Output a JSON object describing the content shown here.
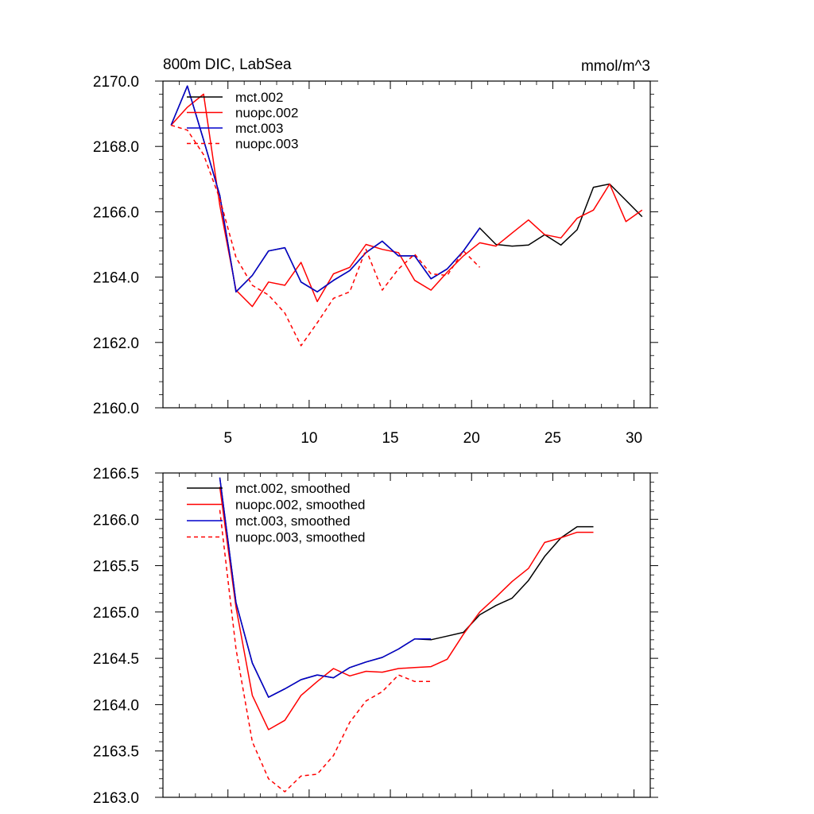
{
  "colors": {
    "black": "#000000",
    "red": "#ff0000",
    "blue": "#0000cc"
  },
  "chart_data": [
    {
      "type": "line",
      "title": "800m DIC, LabSea",
      "units": "mmol/m^3",
      "xlabel": "",
      "ylabel": "",
      "xlim": [
        1,
        31
      ],
      "ylim": [
        2160.0,
        2170.0
      ],
      "xticks": [
        5,
        10,
        15,
        20,
        25,
        30
      ],
      "xtick_labels": [
        "5",
        "10",
        "15",
        "20",
        "25",
        "30"
      ],
      "yticks": [
        2160,
        2162,
        2164,
        2166,
        2168,
        2170
      ],
      "ytick_labels": [
        "2160.0",
        "2162.0",
        "2164.0",
        "2166.0",
        "2168.0",
        "2170.0"
      ],
      "legend_position": "top-left",
      "series": [
        {
          "name": "mct.002",
          "color": "#000000",
          "dash": "solid",
          "x": [
            1.5,
            2.5,
            3.5,
            4.5,
            5.5,
            6.5,
            7.5,
            8.5,
            9.5,
            10.5,
            11.5,
            12.5,
            13.5,
            14.5,
            15.5,
            16.5,
            17.5,
            18.5,
            19.5,
            20.5,
            21.5,
            22.5,
            23.5,
            24.5,
            25.5,
            26.5,
            27.5,
            28.5,
            29.5,
            30.5
          ],
          "values": [
            2168.65,
            2169.85,
            2168.2,
            2166.5,
            2163.55,
            2164.05,
            2164.8,
            2164.9,
            2163.85,
            2163.55,
            2163.9,
            2164.2,
            2164.75,
            2165.1,
            2164.65,
            2164.65,
            2163.95,
            2164.25,
            2164.8,
            2165.5,
            2165.0,
            2164.95,
            2164.98,
            2165.3,
            2164.98,
            2165.45,
            2166.75,
            2166.85,
            2166.35,
            2165.85
          ]
        },
        {
          "name": "nuopc.002",
          "color": "#ff0000",
          "dash": "solid",
          "x": [
            1.5,
            2.5,
            3.5,
            4.5,
            5.5,
            6.5,
            7.5,
            8.5,
            9.5,
            10.5,
            11.5,
            12.5,
            13.5,
            14.5,
            15.5,
            16.5,
            17.5,
            18.5,
            19.5,
            20.5,
            21.5,
            22.5,
            23.5,
            24.5,
            25.5,
            26.5,
            27.5,
            28.5,
            29.5,
            30.5
          ],
          "values": [
            2168.65,
            2169.2,
            2169.6,
            2166.2,
            2163.6,
            2163.1,
            2163.85,
            2163.75,
            2164.45,
            2163.25,
            2164.1,
            2164.3,
            2165.0,
            2164.85,
            2164.75,
            2163.9,
            2163.6,
            2164.15,
            2164.65,
            2165.05,
            2164.95,
            2165.35,
            2165.75,
            2165.3,
            2165.2,
            2165.8,
            2166.05,
            2166.85,
            2165.7,
            2166.05
          ]
        },
        {
          "name": "mct.003",
          "color": "#0000cc",
          "dash": "solid",
          "x": [
            1.5,
            2.5,
            3.5,
            4.5,
            5.5,
            6.5,
            7.5,
            8.5,
            9.5,
            10.5,
            11.5,
            12.5,
            13.5,
            14.5,
            15.5,
            16.5,
            17.5,
            18.5,
            19.5,
            20.5
          ],
          "values": [
            2168.65,
            2169.85,
            2168.2,
            2166.5,
            2163.55,
            2164.05,
            2164.8,
            2164.9,
            2163.85,
            2163.55,
            2163.9,
            2164.2,
            2164.75,
            2165.1,
            2164.65,
            2164.65,
            2163.95,
            2164.25,
            2164.8,
            2165.5
          ]
        },
        {
          "name": "nuopc.003",
          "color": "#ff0000",
          "dash": "dashed",
          "x": [
            1.5,
            2.5,
            3.5,
            4.5,
            5.5,
            6.5,
            7.5,
            8.5,
            9.5,
            10.5,
            11.5,
            12.5,
            13.5,
            14.5,
            15.5,
            16.5,
            17.5,
            18.5,
            19.5,
            20.5
          ],
          "values": [
            2168.65,
            2168.5,
            2167.75,
            2166.4,
            2164.6,
            2163.75,
            2163.45,
            2162.9,
            2161.9,
            2162.6,
            2163.35,
            2163.55,
            2164.85,
            2163.6,
            2164.25,
            2164.7,
            2164.1,
            2164.05,
            2164.8,
            2164.3
          ]
        }
      ]
    },
    {
      "type": "line",
      "title": "",
      "xlabel": "",
      "ylabel": "",
      "xlim": [
        1,
        31
      ],
      "ylim": [
        2163.0,
        2166.5
      ],
      "xticks": [
        5,
        10,
        15,
        20,
        25,
        30
      ],
      "xtick_labels": [],
      "yticks": [
        2163.0,
        2163.5,
        2164.0,
        2164.5,
        2165.0,
        2165.5,
        2166.0,
        2166.5
      ],
      "ytick_labels": [
        "2163.0",
        "2163.5",
        "2164.0",
        "2164.5",
        "2165.0",
        "2165.5",
        "2166.0",
        "2166.5"
      ],
      "legend_position": "top-left",
      "series": [
        {
          "name": "mct.002, smoothed",
          "color": "#000000",
          "dash": "solid",
          "x": [
            4.5,
            5.5,
            6.5,
            7.5,
            8.5,
            9.5,
            10.5,
            11.5,
            12.5,
            13.5,
            14.5,
            15.5,
            16.5,
            17.5,
            18.5,
            19.5,
            20.5,
            21.5,
            22.5,
            23.5,
            24.5,
            25.5,
            26.5,
            27.5
          ],
          "values": [
            2166.45,
            2165.1,
            2164.45,
            2164.08,
            2164.17,
            2164.27,
            2164.32,
            2164.29,
            2164.4,
            2164.46,
            2164.51,
            2164.6,
            2164.71,
            2164.7,
            2164.74,
            2164.78,
            2164.97,
            2165.07,
            2165.15,
            2165.34,
            2165.6,
            2165.8,
            2165.92,
            2165.92
          ]
        },
        {
          "name": "nuopc.002, smoothed",
          "color": "#ff0000",
          "dash": "solid",
          "x": [
            4.5,
            5.5,
            6.5,
            7.5,
            8.5,
            9.5,
            10.5,
            11.5,
            12.5,
            13.5,
            14.5,
            15.5,
            16.5,
            17.5,
            18.5,
            19.5,
            20.5,
            21.5,
            22.5,
            23.5,
            24.5,
            25.5,
            26.5,
            27.5
          ],
          "values": [
            2166.35,
            2165.05,
            2164.1,
            2163.73,
            2163.83,
            2164.1,
            2164.25,
            2164.39,
            2164.31,
            2164.36,
            2164.35,
            2164.39,
            2164.4,
            2164.41,
            2164.49,
            2164.76,
            2165.0,
            2165.16,
            2165.33,
            2165.47,
            2165.75,
            2165.8,
            2165.86,
            2165.86
          ]
        },
        {
          "name": "mct.003, smoothed",
          "color": "#0000cc",
          "dash": "solid",
          "x": [
            4.5,
            5.5,
            6.5,
            7.5,
            8.5,
            9.5,
            10.5,
            11.5,
            12.5,
            13.5,
            14.5,
            15.5,
            16.5,
            17.5
          ],
          "values": [
            2166.45,
            2165.1,
            2164.45,
            2164.08,
            2164.17,
            2164.27,
            2164.32,
            2164.29,
            2164.4,
            2164.46,
            2164.51,
            2164.6,
            2164.71,
            2164.71
          ]
        },
        {
          "name": "nuopc.003, smoothed",
          "color": "#ff0000",
          "dash": "dashed",
          "x": [
            4.5,
            5.5,
            6.5,
            7.5,
            8.5,
            9.5,
            10.5,
            11.5,
            12.5,
            13.5,
            14.5,
            15.5,
            16.5,
            17.5
          ],
          "values": [
            2166.1,
            2164.6,
            2163.6,
            2163.2,
            2163.06,
            2163.23,
            2163.25,
            2163.45,
            2163.81,
            2164.04,
            2164.14,
            2164.32,
            2164.25,
            2164.25
          ]
        }
      ]
    }
  ]
}
